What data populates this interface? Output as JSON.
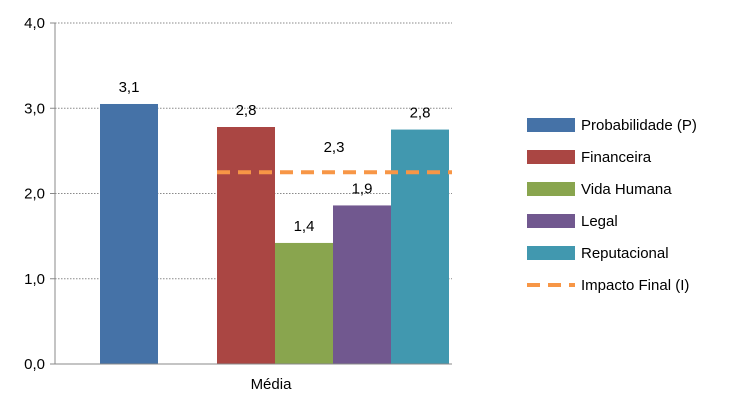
{
  "chart_data": {
    "type": "bar",
    "title": "",
    "xlabel": "",
    "ylabel": "",
    "categories": [
      "Média"
    ],
    "ylim": [
      0,
      4
    ],
    "yticks": [
      "0,0",
      "1,0",
      "2,0",
      "3,0",
      "4,0"
    ],
    "grid": true,
    "legend_position": "right",
    "series": [
      {
        "name": "Probabilidade (P)",
        "values": [
          3.05
        ],
        "label": "3,1",
        "color": "#4572A7",
        "group": "left"
      },
      {
        "name": "Financeira",
        "values": [
          2.78
        ],
        "label": "2,8",
        "color": "#AA4643",
        "group": "right"
      },
      {
        "name": "Vida Humana",
        "values": [
          1.42
        ],
        "label": "1,4",
        "color": "#89A54E",
        "group": "right"
      },
      {
        "name": "Legal",
        "values": [
          1.86
        ],
        "label": "1,9",
        "color": "#71588F",
        "group": "right"
      },
      {
        "name": "Reputacional",
        "values": [
          2.75
        ],
        "label": "2,8",
        "color": "#4198AF",
        "group": "right"
      }
    ],
    "lines": [
      {
        "name": "Impacto Final (I)",
        "value": 2.25,
        "label": "2,3",
        "color": "#F79646",
        "style": "dashed"
      }
    ]
  }
}
